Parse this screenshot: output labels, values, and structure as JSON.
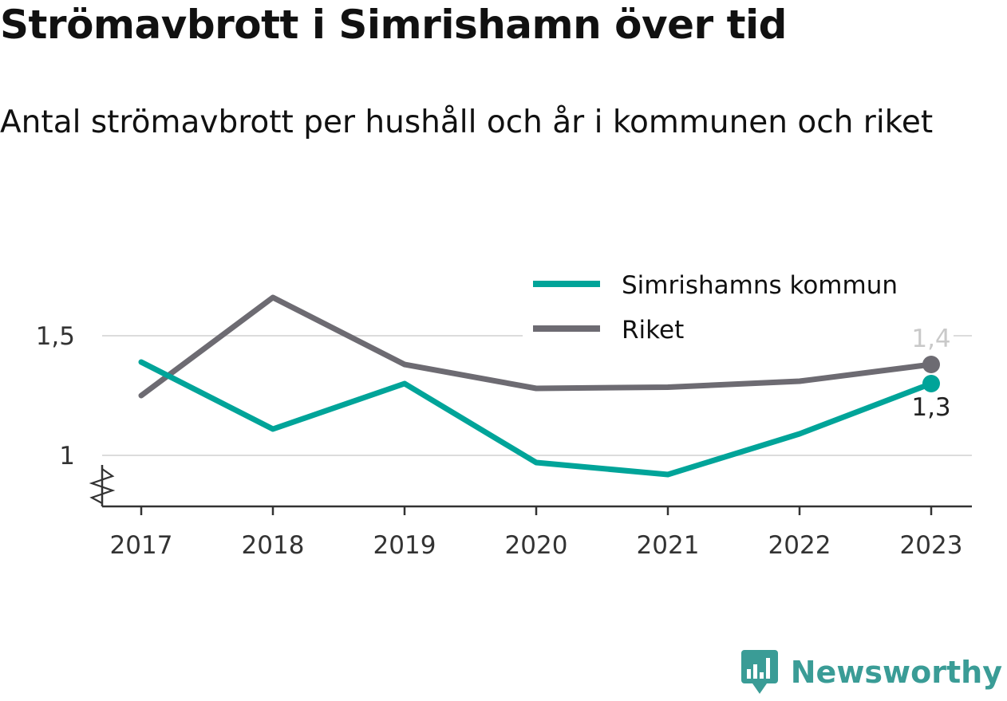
{
  "title": "Strömavbrott i Simrishamn över tid",
  "subtitle": "Antal strömavbrott per hushåll och år i kommunen och riket",
  "brand": {
    "name": "Newsworthy",
    "icon": "newsworthy-logo-icon"
  },
  "colors": {
    "kommun": "#00a499",
    "riket": "#6d6b72",
    "grid": "#dcdcdc",
    "axis": "#333333"
  },
  "chart_data": {
    "type": "line",
    "title": "Strömavbrott i Simrishamn över tid",
    "subtitle": "Antal strömavbrott per hushåll och år i kommunen och riket",
    "categories": [
      "2017",
      "2018",
      "2019",
      "2020",
      "2021",
      "2022",
      "2023"
    ],
    "y_ticks": [
      1,
      1.5
    ],
    "y_tick_labels": [
      "1",
      "1,5"
    ],
    "ylim": [
      0.79,
      1.67
    ],
    "y_axis_break": true,
    "grid": true,
    "legend_position": "top-right",
    "series": [
      {
        "name": "Simrishamns kommun",
        "color": "#00a499",
        "values": [
          1.39,
          1.11,
          1.3,
          0.97,
          0.92,
          1.09,
          1.3
        ],
        "end_label": "1,3"
      },
      {
        "name": "Riket",
        "color": "#6d6b72",
        "values": [
          1.25,
          1.66,
          1.38,
          1.28,
          1.285,
          1.31,
          1.38
        ],
        "end_label": "1,4"
      }
    ]
  }
}
